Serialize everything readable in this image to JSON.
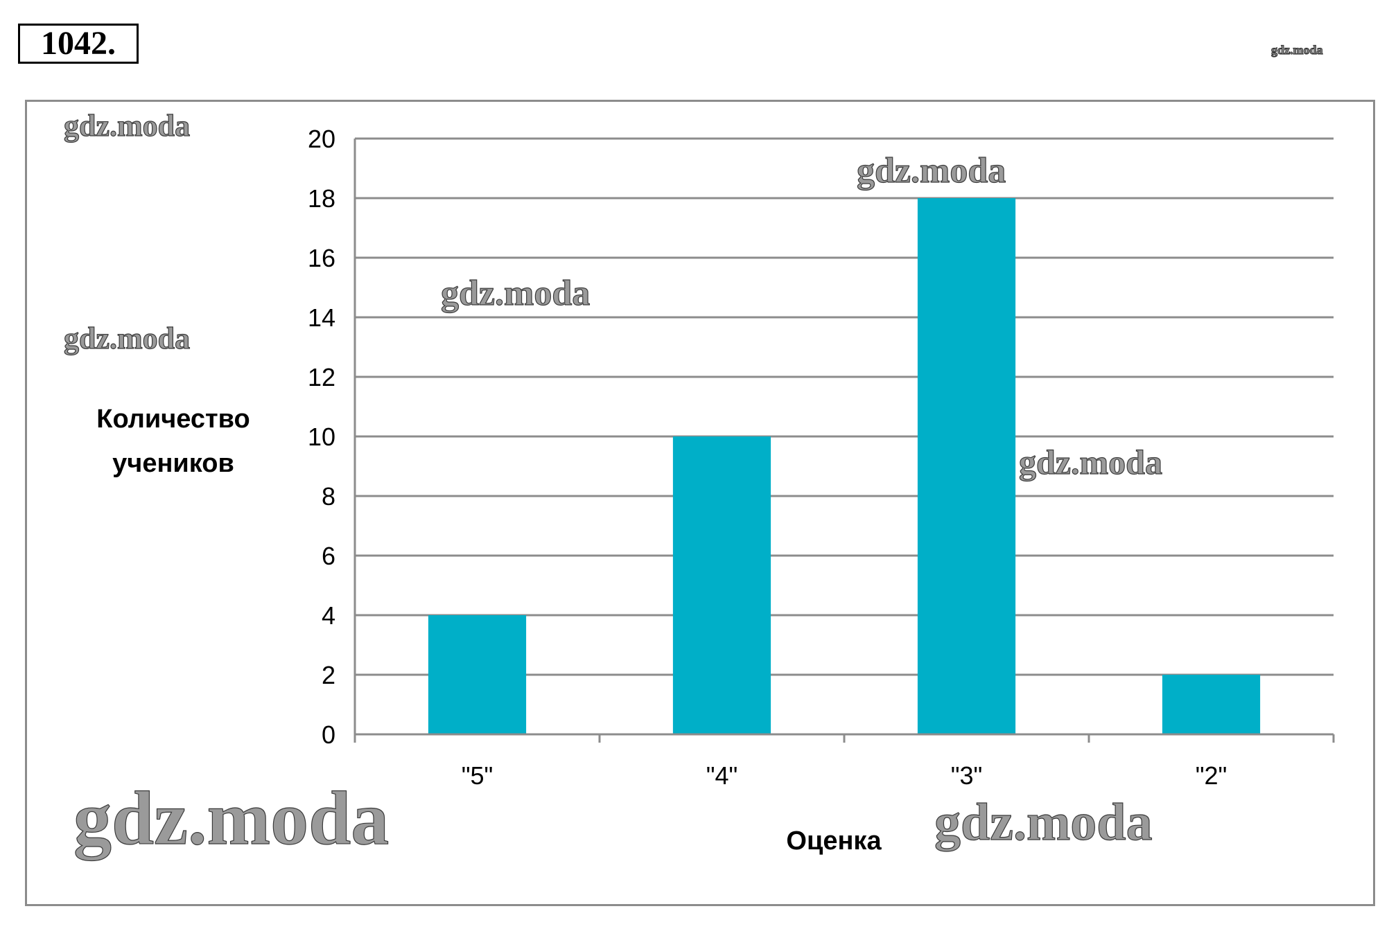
{
  "problem_number": "1042.",
  "watermarks": [
    "gdz.moda",
    "gdz.moda",
    "gdz.moda",
    "gdz.moda",
    "gdz.moda",
    "gdz.moda",
    "gdz.moda",
    "gdz.moda"
  ],
  "colors": {
    "bar": "#00AFC8",
    "grid": "#8c8c8c",
    "frame": "#8c8c8c"
  },
  "chart_data": {
    "type": "bar",
    "categories": [
      "\"5\"",
      "\"4\"",
      "\"3\"",
      "\"2\""
    ],
    "values": [
      4,
      10,
      18,
      2
    ],
    "ylim": [
      0,
      20
    ],
    "yticks": [
      0,
      2,
      4,
      6,
      8,
      10,
      12,
      14,
      16,
      18,
      20
    ],
    "ylabel_lines": [
      "Количество",
      "учеников"
    ],
    "xlabel": "Оценка",
    "grid": true,
    "legend": "none"
  }
}
